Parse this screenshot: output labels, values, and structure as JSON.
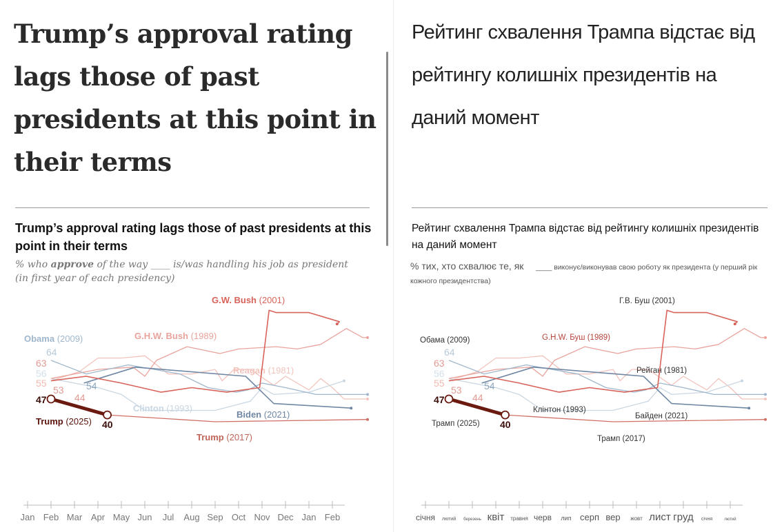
{
  "left": {
    "headline": "Trump’s approval rating lags those of past presidents at this point in their terms",
    "subtitle": "Trump’s approval rating lags those of past presidents at this point in their terms",
    "note_pre": "% who ",
    "note_bold": "approve",
    "note_post": " of the way ____ is/was handling his job as president (in first year of each presidency)",
    "series_labels": {
      "gwbush": [
        "G.W. Bush",
        "(2001)"
      ],
      "ghwbush": [
        "G.H.W. Bush",
        "(1989)"
      ],
      "obama": [
        "Obama",
        "(2009)"
      ],
      "reagan": [
        "Reagan",
        "(1981)"
      ],
      "clinton": [
        "Clinton",
        "(1993)"
      ],
      "biden": [
        "Biden",
        "(2021)"
      ],
      "trump2025": [
        "Trump",
        "(2025)"
      ],
      "trump2017": [
        "Trump",
        "(2017)"
      ]
    },
    "months": [
      "Jan",
      "Feb",
      "Mar",
      "Apr",
      "May",
      "Jun",
      "Jul",
      "Aug",
      "Sep",
      "Oct",
      "Nov",
      "Dec",
      "Jan",
      "Feb"
    ]
  },
  "right": {
    "headline": "Рейтинг схвалення Трампа відстає від рейтингу колишніх президентів на даний момент",
    "subtitle": "Рейтинг схвалення Трампа відстає від рейтингу колишніх президентів на даний момент",
    "note_big": "% тих, хто схвалює те, як",
    "note_blank": "____",
    "note_rest": " виконує/виконував свою роботу як президента (у перший рік кожного президентства)",
    "series_labels": {
      "gwbush": [
        "Г.В. Буш",
        "(2001)"
      ],
      "ghwbush": [
        "G.H.W. Буш",
        "(1989)"
      ],
      "obama": [
        "Обама",
        "(2009)"
      ],
      "reagan": [
        "Рейган",
        "(1981)"
      ],
      "clinton": [
        "Клінтон",
        "(1993)"
      ],
      "biden": [
        "Байден",
        "(2021)"
      ],
      "trump2025": [
        "Трамп",
        "(2025)"
      ],
      "trump2017": [
        "Трамп",
        "(2017)"
      ]
    },
    "months": [
      "січня",
      "лютий",
      "березень",
      "квіт",
      "травня",
      "черв",
      "лип",
      "серп",
      "вер",
      "жовт",
      "лист",
      "груд",
      "січня",
      "лютий"
    ]
  },
  "chart_data": {
    "type": "line",
    "ylabel": "% approve",
    "x_unit": "month of first year (0 = Jan)",
    "start_labels": [
      "64",
      "63",
      "56",
      "55",
      "53",
      "54",
      "44"
    ],
    "trump2025_labels": {
      "start": "47",
      "end": "40"
    },
    "series": [
      {
        "key": "reagan",
        "color": "#f2c4bd",
        "points": [
          [
            1,
            55
          ],
          [
            2.2,
            59
          ],
          [
            3,
            65
          ],
          [
            4,
            65
          ],
          [
            5,
            66
          ],
          [
            6,
            58
          ],
          [
            7,
            58
          ],
          [
            8,
            60
          ],
          [
            8.3,
            55
          ],
          [
            8.8,
            60
          ],
          [
            9.5,
            60
          ],
          [
            10.5,
            53
          ],
          [
            11,
            57
          ],
          [
            11.5,
            54
          ],
          [
            12,
            51
          ],
          [
            12.5,
            56
          ],
          [
            13,
            52
          ],
          [
            13.5,
            47
          ],
          [
            14.5,
            47
          ]
        ]
      },
      {
        "key": "clinton",
        "color": "#c9d7e3",
        "points": [
          [
            1,
            56
          ],
          [
            3,
            52
          ],
          [
            4,
            49
          ],
          [
            5,
            42
          ],
          [
            8,
            42
          ],
          [
            9.5,
            46
          ],
          [
            10,
            52
          ],
          [
            10.5,
            49
          ],
          [
            12,
            50
          ],
          [
            13.5,
            55
          ]
        ]
      },
      {
        "key": "ghwbush",
        "color": "#e9a39d",
        "points": [
          [
            1,
            56
          ],
          [
            3,
            60
          ],
          [
            4.5,
            61
          ],
          [
            5,
            57
          ],
          [
            5.5,
            64
          ],
          [
            6.8,
            70
          ],
          [
            8.2,
            67
          ],
          [
            9,
            69
          ],
          [
            10.6,
            70
          ],
          [
            11.5,
            69
          ],
          [
            12.5,
            71
          ],
          [
            13.6,
            78
          ],
          [
            14.3,
            74
          ],
          [
            14.5,
            74
          ]
        ]
      },
      {
        "key": "obama",
        "color": "#9fb7cc",
        "points": [
          [
            1,
            64
          ],
          [
            2.5,
            58
          ],
          [
            4.3,
            62
          ],
          [
            6.5,
            58
          ],
          [
            7.7,
            52
          ],
          [
            8.9,
            50
          ],
          [
            9.4,
            51
          ],
          [
            10,
            54
          ],
          [
            11,
            52
          ],
          [
            12.3,
            49
          ],
          [
            14.5,
            49
          ]
        ]
      },
      {
        "key": "biden",
        "color": "#6f87a3",
        "points": [
          [
            2.4,
            54
          ],
          [
            4.6,
            61
          ],
          [
            9.3,
            57
          ],
          [
            10.5,
            45
          ],
          [
            13.8,
            43
          ]
        ]
      },
      {
        "key": "gwbush",
        "color": "#d8635a",
        "points": [
          [
            1,
            55
          ],
          [
            2.5,
            57
          ],
          [
            4,
            54
          ],
          [
            5.7,
            50
          ],
          [
            7,
            52
          ],
          [
            8.5,
            50
          ],
          [
            9.9,
            52
          ],
          [
            10.3,
            86
          ],
          [
            10.6,
            85
          ],
          [
            12,
            85
          ],
          [
            13.3,
            81
          ],
          [
            13.2,
            80
          ]
        ]
      },
      {
        "key": "trump2017",
        "color": "#d07065",
        "points": [
          [
            3.4,
            40
          ],
          [
            8,
            37
          ],
          [
            14.5,
            38
          ]
        ]
      },
      {
        "key": "trump2025",
        "color": "#6b1a10",
        "points": [
          [
            1,
            47
          ],
          [
            3.4,
            40
          ]
        ]
      }
    ]
  }
}
